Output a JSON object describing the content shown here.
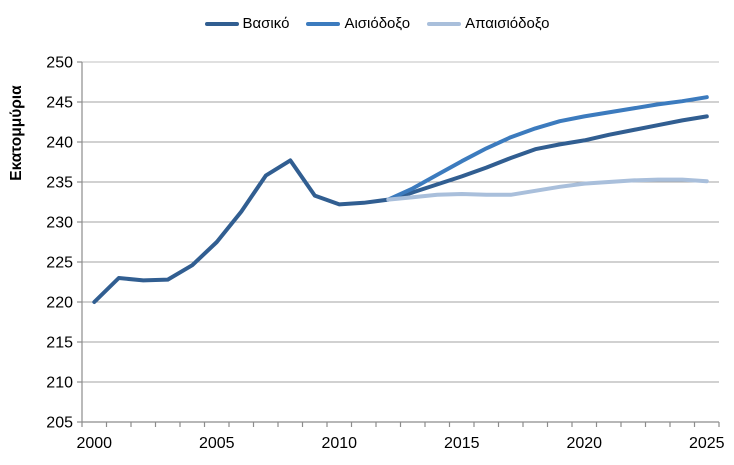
{
  "legend": {
    "items": [
      {
        "label": "Βασικό"
      },
      {
        "label": "Αισιόδοξο"
      },
      {
        "label": "Απαισιόδοξο"
      }
    ]
  },
  "chart_data": {
    "type": "line",
    "title": "",
    "xlabel": "",
    "ylabel": "Εκατομμύρια",
    "ylim": [
      205,
      250
    ],
    "yticks": [
      250,
      245,
      240,
      235,
      230,
      225,
      220,
      215,
      210,
      205
    ],
    "xticks": [
      2000,
      2005,
      2010,
      2015,
      2020,
      2025
    ],
    "x_range": [
      2000,
      2025
    ],
    "grid": "horizontal",
    "legend_position": "top",
    "colors": {
      "gridline": "#a3a3a3",
      "axis": "#8c8c8c",
      "tick_label": "#000000"
    },
    "series": [
      {
        "name": "Βασικό",
        "color": "#315e91",
        "x": [
          2000,
          2001,
          2002,
          2003,
          2004,
          2005,
          2006,
          2007,
          2008,
          2009,
          2010,
          2011,
          2012,
          2013,
          2014,
          2015,
          2016,
          2017,
          2018,
          2019,
          2020,
          2021,
          2022,
          2023,
          2024,
          2025
        ],
        "values": [
          220.0,
          223.0,
          222.7,
          222.8,
          224.6,
          227.5,
          231.3,
          235.8,
          237.7,
          233.3,
          232.2,
          232.4,
          232.8,
          233.7,
          234.7,
          235.7,
          236.8,
          238.0,
          239.1,
          239.7,
          240.2,
          240.9,
          241.5,
          242.1,
          242.7,
          243.2
        ]
      },
      {
        "name": "Αισιόδοξο",
        "color": "#3c7bbe",
        "x": [
          2012,
          2013,
          2014,
          2015,
          2016,
          2017,
          2018,
          2019,
          2020,
          2021,
          2022,
          2023,
          2024,
          2025
        ],
        "values": [
          232.8,
          234.2,
          235.9,
          237.6,
          239.2,
          240.6,
          241.7,
          242.6,
          243.2,
          243.7,
          244.2,
          244.7,
          245.1,
          245.6
        ]
      },
      {
        "name": "Απαισιόδοξο",
        "color": "#a9bfdb",
        "x": [
          2012,
          2013,
          2014,
          2015,
          2016,
          2017,
          2018,
          2019,
          2020,
          2021,
          2022,
          2023,
          2024,
          2025
        ],
        "values": [
          232.8,
          233.1,
          233.4,
          233.5,
          233.4,
          233.4,
          233.9,
          234.4,
          234.8,
          235.0,
          235.2,
          235.3,
          235.3,
          235.1
        ]
      }
    ]
  }
}
